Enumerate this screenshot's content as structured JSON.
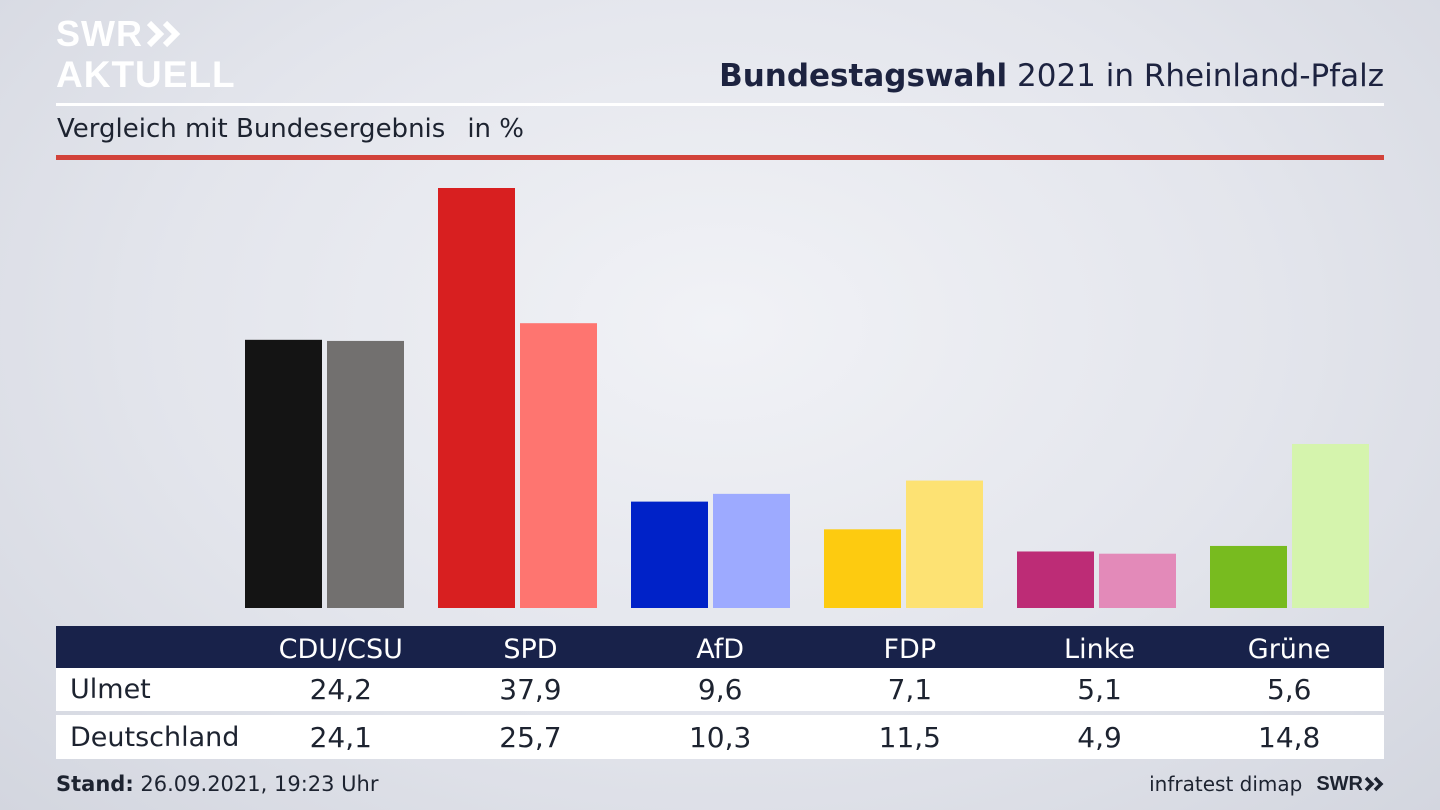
{
  "branding": {
    "logo_top": "SWR",
    "logo_bottom": "AKTUELL",
    "footer_logo": "SWR"
  },
  "header": {
    "title_bold": "Bundestagswahl",
    "title_rest": " 2021 in Rheinland-Pfalz",
    "subtitle": "Vergleich mit Bundesergebnis",
    "unit": "in %"
  },
  "footer": {
    "stand_label": "Stand:",
    "stand_value": " 26.09.2021, 19:23 Uhr",
    "source": "infratest dimap"
  },
  "table": {
    "header": [
      "",
      "CDU/CSU",
      "SPD",
      "AfD",
      "FDP",
      "Linke",
      "Grüne"
    ],
    "rows": [
      {
        "label": "Ulmet",
        "values": [
          "24,2",
          "37,9",
          "9,6",
          "7,1",
          "5,1",
          "5,6"
        ]
      },
      {
        "label": "Deutschland",
        "values": [
          "24,1",
          "25,7",
          "10,3",
          "11,5",
          "4,9",
          "14,8"
        ]
      }
    ]
  },
  "chart_data": {
    "type": "bar",
    "categories": [
      "CDU/CSU",
      "SPD",
      "AfD",
      "FDP",
      "Linke",
      "Grüne"
    ],
    "series": [
      {
        "name": "Ulmet",
        "values": [
          24.2,
          37.9,
          9.6,
          7.1,
          5.1,
          5.6
        ]
      },
      {
        "name": "Deutschland",
        "values": [
          24.1,
          25.7,
          10.3,
          11.5,
          4.9,
          14.8
        ]
      }
    ],
    "colors": {
      "Ulmet": [
        "#141414",
        "#d81f20",
        "#0022c8",
        "#fdcb10",
        "#bd2c76",
        "#78bb1f"
      ],
      "Deutschland": [
        "#72706f",
        "#fe7570",
        "#9daaff",
        "#fde273",
        "#e38ab9",
        "#d5f4ad"
      ]
    },
    "ylim": [
      0,
      38
    ],
    "grid": false,
    "legend": "table below chart"
  }
}
